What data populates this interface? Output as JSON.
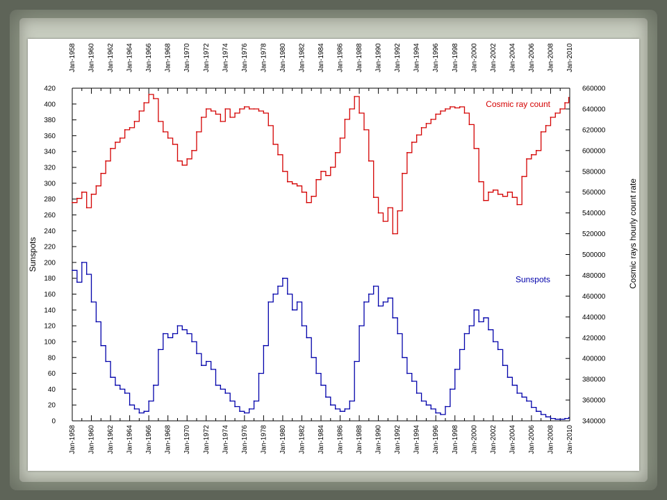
{
  "chart_data": {
    "type": "line",
    "xlabel": "",
    "x_ticks": [
      "Jan-1958",
      "Jan-1960",
      "Jan-1962",
      "Jan-1964",
      "Jan-1966",
      "Jan-1968",
      "Jan-1970",
      "Jan-1972",
      "Jan-1974",
      "Jan-1976",
      "Jan-1978",
      "Jan-1980",
      "Jan-1982",
      "Jan-1984",
      "Jan-1986",
      "Jan-1988",
      "Jan-1990",
      "Jan-1992",
      "Jan-1994",
      "Jan-1996",
      "Jan-1998",
      "Jan-2000",
      "Jan-2002",
      "Jan-2004",
      "Jan-2006",
      "Jan-2008",
      "Jan-2010"
    ],
    "xlim": [
      1958,
      2010
    ],
    "y_left": {
      "label": "Sunspots",
      "lim": [
        0,
        420
      ],
      "ticks": [
        0,
        20,
        40,
        60,
        80,
        100,
        120,
        140,
        160,
        180,
        200,
        220,
        240,
        260,
        280,
        300,
        320,
        340,
        360,
        380,
        400,
        420
      ]
    },
    "y_right": {
      "label": "Cosmic rays hourly count rate",
      "lim": [
        340000,
        660000
      ],
      "ticks": [
        340000,
        360000,
        380000,
        400000,
        420000,
        440000,
        460000,
        480000,
        500000,
        520000,
        540000,
        560000,
        580000,
        600000,
        620000,
        640000,
        660000
      ]
    },
    "grid": false,
    "series": [
      {
        "name": "Cosmic ray count",
        "axis": "right",
        "color": "#d40000",
        "label_position": "top-right",
        "x": [
          1958.0,
          1958.5,
          1959.0,
          1959.5,
          1960.0,
          1960.5,
          1961.0,
          1961.5,
          1962.0,
          1962.5,
          1963.0,
          1963.5,
          1964.0,
          1964.5,
          1965.0,
          1965.5,
          1966.0,
          1966.5,
          1967.0,
          1967.5,
          1968.0,
          1968.5,
          1969.0,
          1969.5,
          1970.0,
          1970.5,
          1971.0,
          1971.5,
          1972.0,
          1972.5,
          1973.0,
          1973.5,
          1974.0,
          1974.5,
          1975.0,
          1975.5,
          1976.0,
          1976.5,
          1977.0,
          1977.5,
          1978.0,
          1978.5,
          1979.0,
          1979.5,
          1980.0,
          1980.5,
          1981.0,
          1981.5,
          1982.0,
          1982.5,
          1983.0,
          1983.5,
          1984.0,
          1984.5,
          1985.0,
          1985.5,
          1986.0,
          1986.5,
          1987.0,
          1987.5,
          1988.0,
          1988.5,
          1989.0,
          1989.5,
          1990.0,
          1990.5,
          1991.0,
          1991.5,
          1992.0,
          1992.5,
          1993.0,
          1993.5,
          1994.0,
          1994.5,
          1995.0,
          1995.5,
          1996.0,
          1996.5,
          1997.0,
          1997.5,
          1998.0,
          1998.5,
          1999.0,
          1999.5,
          2000.0,
          2000.5,
          2001.0,
          2001.5,
          2002.0,
          2002.5,
          2003.0,
          2003.5,
          2004.0,
          2004.5,
          2005.0,
          2005.5,
          2006.0,
          2006.5,
          2007.0,
          2007.5,
          2008.0,
          2008.5,
          2009.0,
          2009.5,
          2009.9
        ],
        "values": [
          550000,
          554000,
          560000,
          545000,
          558000,
          566000,
          578000,
          590000,
          602000,
          608000,
          612000,
          620000,
          622000,
          628000,
          638000,
          646000,
          654000,
          650000,
          628000,
          618000,
          612000,
          606000,
          590000,
          586000,
          592000,
          600000,
          618000,
          632000,
          640000,
          638000,
          635000,
          628000,
          640000,
          632000,
          636000,
          640000,
          642000,
          640000,
          640000,
          638000,
          636000,
          624000,
          606000,
          596000,
          580000,
          570000,
          568000,
          566000,
          560000,
          550000,
          556000,
          572000,
          580000,
          576000,
          584000,
          598000,
          612000,
          630000,
          640000,
          652000,
          636000,
          620000,
          590000,
          555000,
          540000,
          532000,
          545000,
          520000,
          542000,
          578000,
          598000,
          608000,
          615000,
          622000,
          626000,
          630000,
          635000,
          638000,
          640000,
          642000,
          641000,
          642000,
          636000,
          625000,
          602000,
          570000,
          552000,
          560000,
          562000,
          558000,
          556000,
          560000,
          555000,
          548000,
          575000,
          592000,
          596000,
          600000,
          618000,
          624000,
          632000,
          636000,
          640000,
          646000,
          651000
        ]
      },
      {
        "name": "Sunspots",
        "axis": "left",
        "color": "#0000aa",
        "label_position": "right-middle",
        "x": [
          1958.0,
          1958.5,
          1959.0,
          1959.5,
          1960.0,
          1960.5,
          1961.0,
          1961.5,
          1962.0,
          1962.5,
          1963.0,
          1963.5,
          1964.0,
          1964.5,
          1965.0,
          1965.5,
          1966.0,
          1966.5,
          1967.0,
          1967.5,
          1968.0,
          1968.5,
          1969.0,
          1969.5,
          1970.0,
          1970.5,
          1971.0,
          1971.5,
          1972.0,
          1972.5,
          1973.0,
          1973.5,
          1974.0,
          1974.5,
          1975.0,
          1975.5,
          1976.0,
          1976.5,
          1977.0,
          1977.5,
          1978.0,
          1978.5,
          1979.0,
          1979.5,
          1980.0,
          1980.5,
          1981.0,
          1981.5,
          1982.0,
          1982.5,
          1983.0,
          1983.5,
          1984.0,
          1984.5,
          1985.0,
          1985.5,
          1986.0,
          1986.5,
          1987.0,
          1987.5,
          1988.0,
          1988.5,
          1989.0,
          1989.5,
          1990.0,
          1990.5,
          1991.0,
          1991.5,
          1992.0,
          1992.5,
          1993.0,
          1993.5,
          1994.0,
          1994.5,
          1995.0,
          1995.5,
          1996.0,
          1996.5,
          1997.0,
          1997.5,
          1998.0,
          1998.5,
          1999.0,
          1999.5,
          2000.0,
          2000.5,
          2001.0,
          2001.5,
          2002.0,
          2002.5,
          2003.0,
          2003.5,
          2004.0,
          2004.5,
          2005.0,
          2005.5,
          2006.0,
          2006.5,
          2007.0,
          2007.5,
          2008.0,
          2008.5,
          2009.0,
          2009.5,
          2009.9
        ],
        "values": [
          190,
          175,
          200,
          185,
          150,
          125,
          95,
          75,
          55,
          45,
          40,
          35,
          20,
          15,
          10,
          12,
          25,
          45,
          90,
          110,
          105,
          110,
          120,
          115,
          110,
          100,
          85,
          70,
          75,
          65,
          45,
          40,
          35,
          25,
          18,
          12,
          10,
          15,
          25,
          60,
          95,
          150,
          160,
          170,
          180,
          160,
          140,
          150,
          120,
          105,
          80,
          60,
          45,
          30,
          20,
          15,
          12,
          15,
          25,
          75,
          120,
          150,
          160,
          170,
          145,
          150,
          155,
          130,
          110,
          80,
          60,
          50,
          35,
          25,
          20,
          15,
          10,
          8,
          18,
          40,
          65,
          90,
          110,
          120,
          140,
          125,
          130,
          115,
          100,
          90,
          70,
          55,
          45,
          35,
          30,
          25,
          17,
          12,
          8,
          5,
          3,
          2,
          2,
          3,
          4
        ]
      }
    ]
  }
}
